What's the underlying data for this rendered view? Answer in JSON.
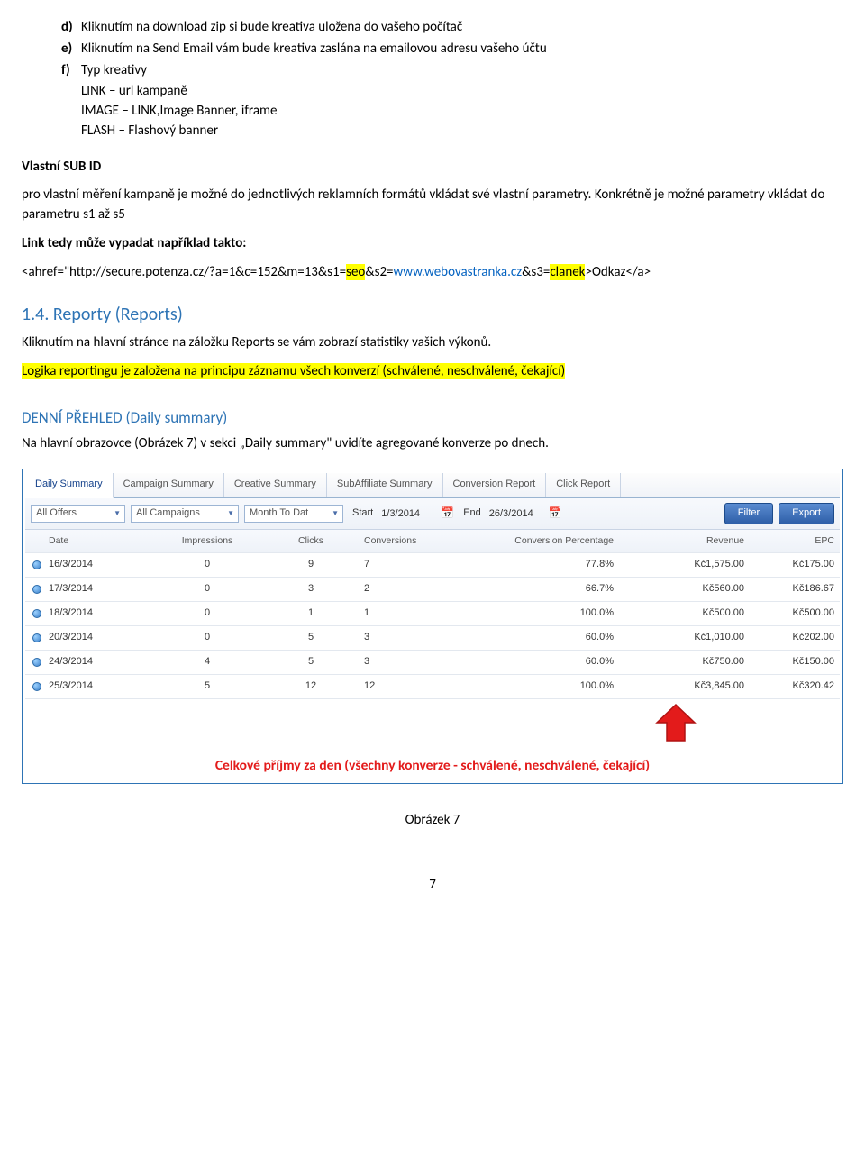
{
  "list": {
    "d": {
      "marker": "d)",
      "text": "Kliknutím na download zip si bude kreativa uložena do vašeho počítač"
    },
    "e": {
      "marker": "e)",
      "text": "Kliknutím na Send Email vám bude kreativa zaslána na emailovou adresu vašeho účtu"
    },
    "f": {
      "marker": "f)",
      "text": "Typ kreativy"
    }
  },
  "types": {
    "link": "LINK – url kampaně",
    "image": "IMAGE – LINK,Image Banner, iframe",
    "flash": "FLASH – Flashový banner"
  },
  "subid": {
    "heading": "Vlastní SUB ID",
    "p1": "pro vlastní měření kampaně je možné do jednotlivých reklamních formátů vkládat své vlastní parametry. Konkrétně je možné parametry vkládat do parametru s1 až s5",
    "p2": "Link tedy může vypadat například takto:"
  },
  "url": {
    "p1": "<ahref=\"http://secure.potenza.cz/?a=1&c=152&m=13&s1=",
    "p1_hl": "seo",
    "p2": "&s2=",
    "p2_link": "www.webovastranka.cz",
    "p3": "&s3=",
    "p3_hl": "clanek",
    "p4": ">Odkaz</a>"
  },
  "reports": {
    "h2": "1.4. Reporty (Reports)",
    "p1": "Kliknutím na hlavní stránce na záložku Reports se vám zobrazí statistiky vašich výkonů.",
    "p2_hl": "Logika reportingu je založena na principu záznamu všech konverzí (schválené, neschválené, čekající)"
  },
  "daily": {
    "h3": "DENNÍ PŘEHLED (Daily summary)",
    "p1": "Na hlavní obrazovce (Obrázek 7) v sekci „Daily summary\" uvidíte agregované konverze po dnech."
  },
  "shot": {
    "tabs": [
      "Daily Summary",
      "Campaign Summary",
      "Creative Summary",
      "SubAffiliate Summary",
      "Conversion Report",
      "Click Report"
    ],
    "filters": {
      "offers": "All Offers",
      "campaigns": "All Campaigns",
      "range": "Month To Dat",
      "start_label": "Start",
      "start_value": "1/3/2014",
      "end_label": "End",
      "end_value": "26/3/2014",
      "filter_btn": "Filter",
      "export_btn": "Export"
    },
    "columns": [
      "Date",
      "Impressions",
      "Clicks",
      "Conversions",
      "Conversion Percentage",
      "Revenue",
      "EPC"
    ],
    "rows": [
      {
        "date": "16/3/2014",
        "imp": "0",
        "clk": "9",
        "conv": "7",
        "pct": "77.8%",
        "rev": "Kč1,575.00",
        "epc": "Kč175.00"
      },
      {
        "date": "17/3/2014",
        "imp": "0",
        "clk": "3",
        "conv": "2",
        "pct": "66.7%",
        "rev": "Kč560.00",
        "epc": "Kč186.67"
      },
      {
        "date": "18/3/2014",
        "imp": "0",
        "clk": "1",
        "conv": "1",
        "pct": "100.0%",
        "rev": "Kč500.00",
        "epc": "Kč500.00"
      },
      {
        "date": "20/3/2014",
        "imp": "0",
        "clk": "5",
        "conv": "3",
        "pct": "60.0%",
        "rev": "Kč1,010.00",
        "epc": "Kč202.00"
      },
      {
        "date": "24/3/2014",
        "imp": "4",
        "clk": "5",
        "conv": "3",
        "pct": "60.0%",
        "rev": "Kč750.00",
        "epc": "Kč150.00"
      },
      {
        "date": "25/3/2014",
        "imp": "5",
        "clk": "12",
        "conv": "12",
        "pct": "100.0%",
        "rev": "Kč3,845.00",
        "epc": "Kč320.42"
      }
    ]
  },
  "red_caption": "Celkové příjmy za den (všechny konverze - schválené, neschválené, čekající)",
  "fig_caption": "Obrázek 7",
  "page_num": "7",
  "colors": {
    "heading_blue": "#2e74b5",
    "link_blue": "#0563c1",
    "highlight": "#ffff00",
    "red": "#e31b1b",
    "btn_grad_top": "#5a8bd0",
    "btn_grad_bot": "#2e5fa8"
  }
}
